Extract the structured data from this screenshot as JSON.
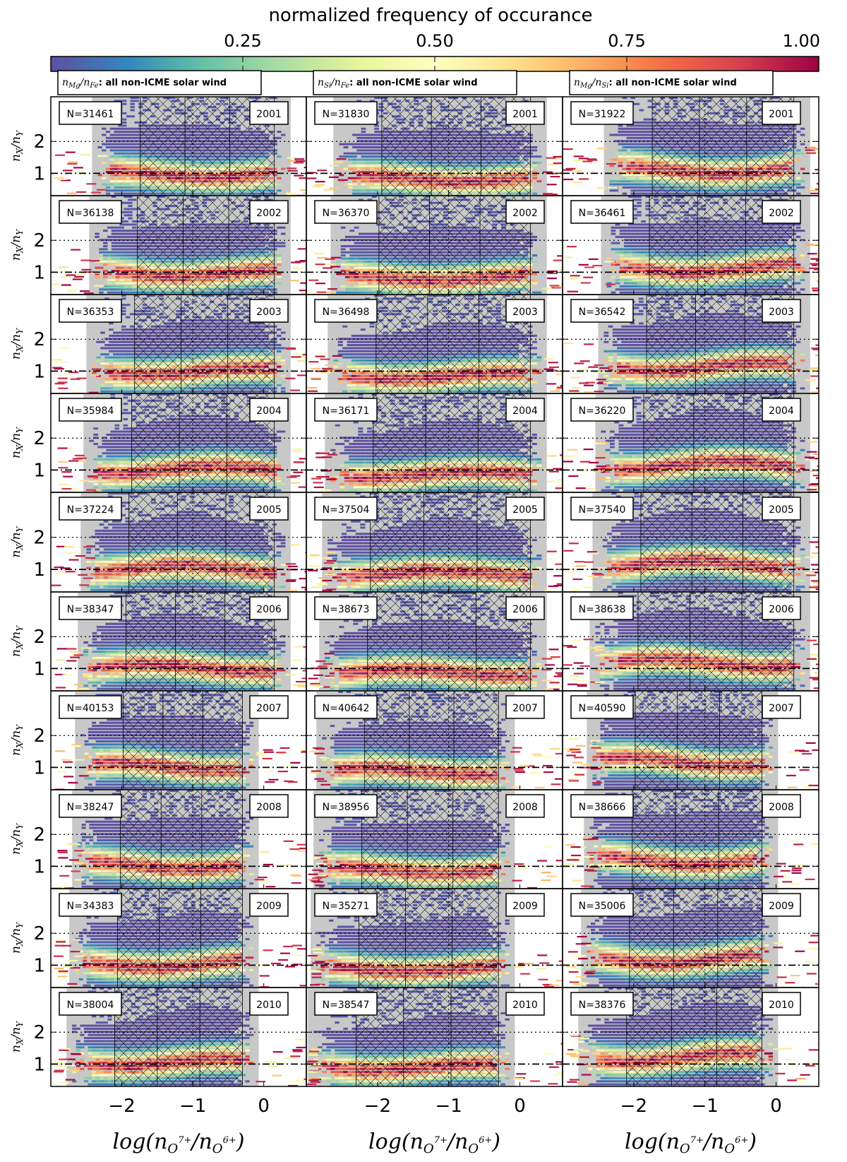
{
  "chart_data": {
    "type": "heatmap",
    "colorbar": {
      "title": "normalized frequency of occurance",
      "ticks": [
        "0.25",
        "0.50",
        "0.75",
        "1.00"
      ],
      "tick_values": [
        0.25,
        0.5,
        0.75,
        1.0
      ],
      "range": [
        0,
        1
      ],
      "colormap": [
        "#5e4fa2",
        "#3288bd",
        "#66c2a5",
        "#abdda4",
        "#e6f598",
        "#ffffbf",
        "#fee08b",
        "#fdae61",
        "#f46d43",
        "#d53e4f",
        "#9e0142"
      ]
    },
    "columns": [
      {
        "header_math": "n",
        "header_sub1": "Mg",
        "header_mid": "/n",
        "header_sub2": "Fe",
        "header_text": ": all non-ICME solar wind",
        "xlabel_main": "log(n",
        "xlabel_sup1": "O",
        "xlabel_sup1b": "7+",
        "xlabel_mid": "/n",
        "xlabel_sup2": "O",
        "xlabel_sup2b": "6+",
        "xlabel_end": ")",
        "peak_ratio": 1.0,
        "xmin_data": -2.5,
        "xmax_data": 0.3
      },
      {
        "header_math": "n",
        "header_sub1": "Si",
        "header_mid": "/n",
        "header_sub2": "Fe",
        "header_text": ": all non-ICME solar wind",
        "xlabel_main": "log(n",
        "xlabel_sup1": "O",
        "xlabel_sup1b": "7+",
        "xlabel_mid": "/n",
        "xlabel_sup2": "O",
        "xlabel_sup2b": "6+",
        "xlabel_end": ")",
        "peak_ratio": 0.85,
        "xmin_data": -2.7,
        "xmax_data": 0.3
      },
      {
        "header_math": "n",
        "header_sub1": "Mg",
        "header_mid": "/n",
        "header_sub2": "Si",
        "header_text": ": all non-ICME solar wind",
        "xlabel_main": "log(n",
        "xlabel_sup1": "O",
        "xlabel_sup1b": "7+",
        "xlabel_mid": "/n",
        "xlabel_sup2": "O",
        "xlabel_sup2b": "6+",
        "xlabel_end": ")",
        "peak_ratio": 1.15,
        "xmin_data": -2.5,
        "xmax_data": 0.4
      }
    ],
    "years": [
      "2001",
      "2002",
      "2003",
      "2004",
      "2005",
      "2006",
      "2007",
      "2008",
      "2009",
      "2010"
    ],
    "counts": [
      [
        "N=31461",
        "N=31830",
        "N=31922"
      ],
      [
        "N=36138",
        "N=36370",
        "N=36461"
      ],
      [
        "N=36353",
        "N=36498",
        "N=36542"
      ],
      [
        "N=35984",
        "N=36171",
        "N=36220"
      ],
      [
        "N=37224",
        "N=37504",
        "N=37540"
      ],
      [
        "N=38347",
        "N=38673",
        "N=38638"
      ],
      [
        "N=40153",
        "N=40642",
        "N=40590"
      ],
      [
        "N=38247",
        "N=38956",
        "N=38666"
      ],
      [
        "N=34383",
        "N=35271",
        "N=35006"
      ],
      [
        "N=38004",
        "N=38547",
        "N=38376"
      ]
    ],
    "ylabel": {
      "main": "n",
      "sub1": "X",
      "mid": "/n",
      "sub2": "Y"
    },
    "y_ticks": [
      "1",
      "2"
    ],
    "y_tick_values": [
      1,
      2
    ],
    "y_range": [
      0.3,
      3.4
    ],
    "x_ticks": [
      "−2",
      "−1",
      "0"
    ],
    "x_tick_values": [
      -2,
      -1,
      0
    ],
    "x_range": [
      -3.0,
      0.6
    ],
    "reference_lines": {
      "dashdot_y": 1,
      "dotted_y": 2,
      "dotted_x": -1
    }
  }
}
